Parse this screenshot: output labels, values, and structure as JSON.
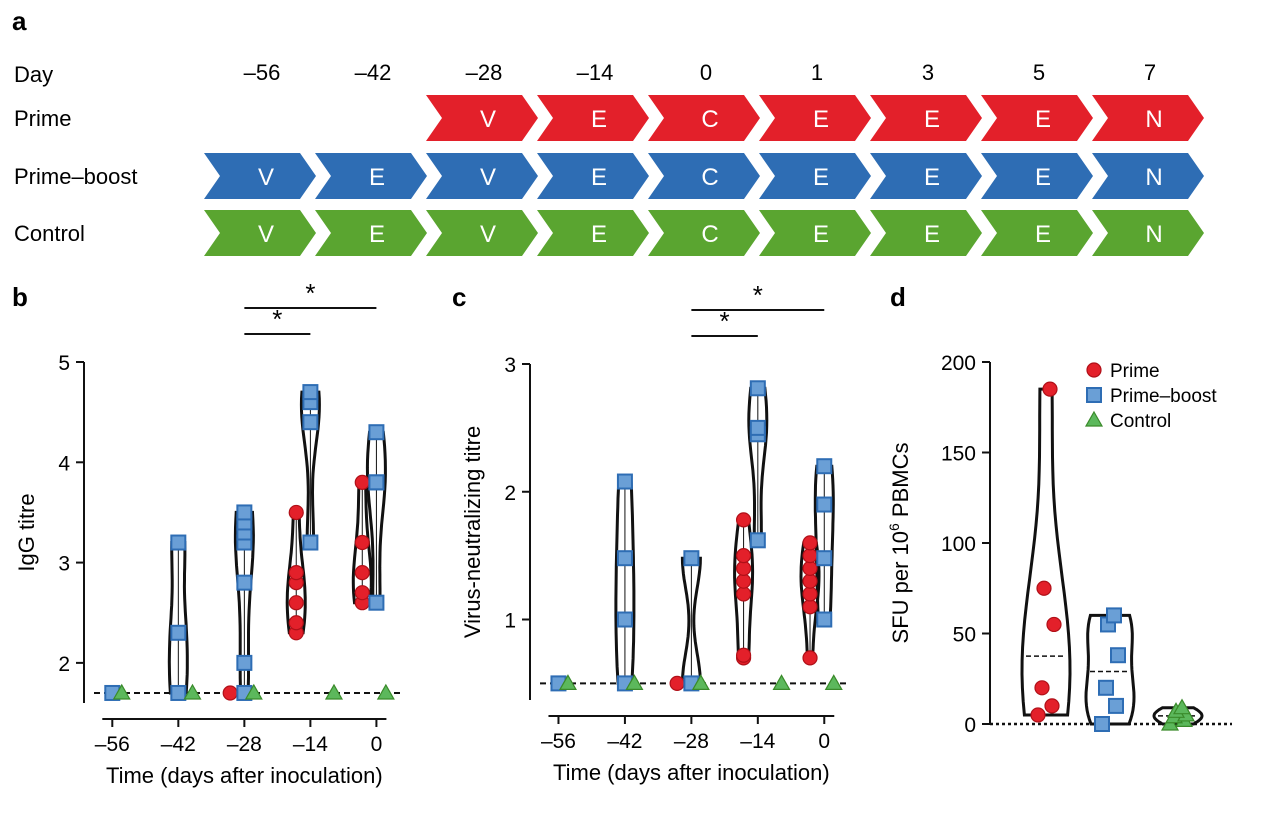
{
  "panel_a": {
    "letter": "a",
    "day_label": "Day",
    "days": [
      "–56",
      "–42",
      "–28",
      "–14",
      "0",
      "1",
      "3",
      "5",
      "7"
    ],
    "rows": [
      {
        "name": "Prime",
        "color": "#e3202a",
        "steps": [
          "",
          "",
          "V",
          "E",
          "C",
          "E",
          "E",
          "E",
          "N"
        ]
      },
      {
        "name": "Prime–boost",
        "color": "#2e6db4",
        "steps": [
          "V",
          "E",
          "V",
          "E",
          "C",
          "E",
          "E",
          "E",
          "N"
        ]
      },
      {
        "name": "Control",
        "color": "#5aa530",
        "steps": [
          "V",
          "E",
          "V",
          "E",
          "C",
          "E",
          "E",
          "E",
          "N"
        ]
      }
    ]
  },
  "colors": {
    "prime": "#e3202a",
    "prime_boost": "#2e6db4",
    "control": "#5aa530",
    "prime_boost_fill": "#6a9fd6",
    "control_fill": "#5cb85c"
  },
  "chart_data": [
    {
      "panel": "b",
      "type": "scatter",
      "subtype": "violin",
      "xlabel": "Time (days after inoculation)",
      "ylabel": "IgG titre",
      "xticks": [
        -56,
        -42,
        -28,
        -14,
        0
      ],
      "xtick_labels": [
        "–56",
        "–42",
        "–28",
        "–14",
        "0"
      ],
      "yticks": [
        2,
        3,
        4,
        5
      ],
      "xlim": [
        -62,
        5
      ],
      "ylim": [
        1.6,
        5
      ],
      "baseline": 1.7,
      "significance": [
        {
          "x1": -28,
          "x2": -14,
          "label": "*",
          "level": 1
        },
        {
          "x1": -28,
          "x2": 0,
          "label": "*",
          "level": 2
        }
      ],
      "series": [
        {
          "name": "Prime",
          "points": [
            {
              "x": -31,
              "y": [
                1.7
              ]
            },
            {
              "x": -17,
              "y": [
                2.3,
                2.4,
                2.6,
                2.8,
                2.9,
                3.5
              ]
            },
            {
              "x": -3,
              "y": [
                2.6,
                2.7,
                2.9,
                3.2,
                3.8
              ]
            }
          ]
        },
        {
          "name": "Prime–boost",
          "points": [
            {
              "x": -56,
              "y": [
                1.7
              ]
            },
            {
              "x": -42,
              "y": [
                1.7,
                2.3,
                3.2
              ]
            },
            {
              "x": -28,
              "y": [
                1.7,
                2.0,
                2.8,
                3.2,
                3.3,
                3.4,
                3.5
              ]
            },
            {
              "x": -14,
              "y": [
                3.2,
                4.4,
                4.6,
                4.7
              ]
            },
            {
              "x": 0,
              "y": [
                2.6,
                3.8,
                3.8,
                4.3
              ]
            }
          ]
        },
        {
          "name": "Control",
          "points": [
            {
              "x": -54,
              "y": [
                1.7
              ]
            },
            {
              "x": -39,
              "y": [
                1.7
              ]
            },
            {
              "x": -26,
              "y": [
                1.7
              ]
            },
            {
              "x": -9,
              "y": [
                1.7
              ]
            },
            {
              "x": 2,
              "y": [
                1.7
              ]
            }
          ]
        }
      ]
    },
    {
      "panel": "c",
      "type": "scatter",
      "subtype": "violin",
      "xlabel": "Time (days after inoculation)",
      "ylabel": "Virus-neutralizing titre",
      "xticks": [
        -56,
        -42,
        -28,
        -14,
        0
      ],
      "xtick_labels": [
        "–56",
        "–42",
        "–28",
        "–14",
        "0"
      ],
      "yticks": [
        1,
        2,
        3
      ],
      "xlim": [
        -62,
        5
      ],
      "ylim": [
        0.37,
        3
      ],
      "baseline": 0.5,
      "significance": [
        {
          "x1": -28,
          "x2": -14,
          "label": "*",
          "level": 1
        },
        {
          "x1": -28,
          "x2": 0,
          "label": "*",
          "level": 2
        }
      ],
      "series": [
        {
          "name": "Prime",
          "points": [
            {
              "x": -31,
              "y": [
                0.5
              ]
            },
            {
              "x": -17,
              "y": [
                0.7,
                0.72,
                1.2,
                1.3,
                1.4,
                1.5,
                1.78
              ]
            },
            {
              "x": -3,
              "y": [
                0.7,
                1.1,
                1.2,
                1.3,
                1.4,
                1.5,
                1.6
              ]
            }
          ]
        },
        {
          "name": "Prime–boost",
          "points": [
            {
              "x": -56,
              "y": [
                0.5
              ]
            },
            {
              "x": -42,
              "y": [
                0.5,
                1.0,
                1.48,
                2.08
              ]
            },
            {
              "x": -28,
              "y": [
                0.5,
                1.48
              ]
            },
            {
              "x": -14,
              "y": [
                1.62,
                2.45,
                2.5,
                2.81
              ]
            },
            {
              "x": 0,
              "y": [
                1.0,
                1.48,
                1.9,
                2.2
              ]
            }
          ]
        },
        {
          "name": "Control",
          "points": [
            {
              "x": -54,
              "y": [
                0.5
              ]
            },
            {
              "x": -40,
              "y": [
                0.5
              ]
            },
            {
              "x": -26,
              "y": [
                0.5
              ]
            },
            {
              "x": -9,
              "y": [
                0.5
              ]
            },
            {
              "x": 2,
              "y": [
                0.5
              ]
            }
          ]
        }
      ]
    },
    {
      "panel": "d",
      "type": "scatter",
      "subtype": "violin",
      "ylabel": "SFU per 10",
      "ylabel_sup": "6",
      "ylabel_tail": " PBMCs",
      "yticks": [
        0,
        50,
        100,
        150,
        200
      ],
      "ylim": [
        0,
        200
      ],
      "legend_position": "top-right",
      "series": [
        {
          "name": "Prime",
          "values": [
            5,
            10,
            20,
            55,
            75,
            185
          ]
        },
        {
          "name": "Prime–boost",
          "values": [
            0,
            10,
            20,
            38,
            55,
            60
          ]
        },
        {
          "name": "Control",
          "values": [
            0,
            2,
            4,
            5,
            7,
            9
          ]
        }
      ]
    }
  ]
}
